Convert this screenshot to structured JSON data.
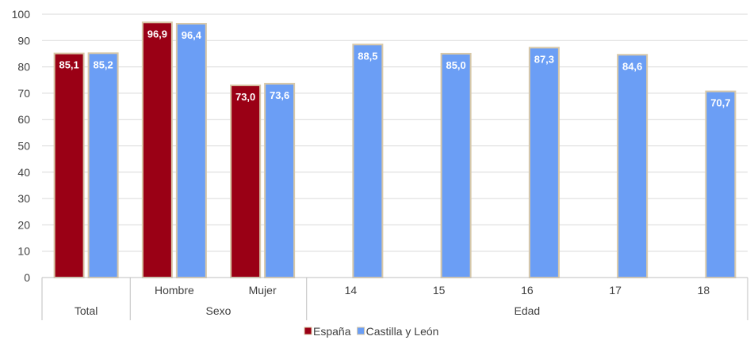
{
  "chart_data": {
    "type": "bar",
    "ylim": [
      0,
      100
    ],
    "yticks": [
      0,
      10,
      20,
      30,
      40,
      50,
      60,
      70,
      80,
      90,
      100
    ],
    "categories": [
      "Total",
      "Hombre",
      "Mujer",
      "14",
      "15",
      "16",
      "17",
      "18"
    ],
    "groups": [
      {
        "label": "Total",
        "categories": [
          "Total"
        ]
      },
      {
        "label": "Sexo",
        "categories": [
          "Hombre",
          "Mujer"
        ]
      },
      {
        "label": "Edad",
        "categories": [
          "14",
          "15",
          "16",
          "17",
          "18"
        ]
      }
    ],
    "series": [
      {
        "name": "España",
        "color": "#9a0015",
        "values": [
          85.1,
          96.9,
          73.0,
          null,
          null,
          null,
          null,
          null
        ],
        "labels": [
          "85,1",
          "96,9",
          "73,0",
          "",
          "",
          "",
          "",
          ""
        ]
      },
      {
        "name": "Castilla y León",
        "color": "#6b9ef5",
        "values": [
          85.2,
          96.4,
          73.6,
          88.5,
          85.0,
          87.3,
          84.6,
          70.7
        ],
        "labels": [
          "85,2",
          "96,4",
          "73,6",
          "88,5",
          "85,0",
          "87,3",
          "84,6",
          "70,7"
        ]
      }
    ],
    "legend_position": "bottom",
    "grid": true
  }
}
